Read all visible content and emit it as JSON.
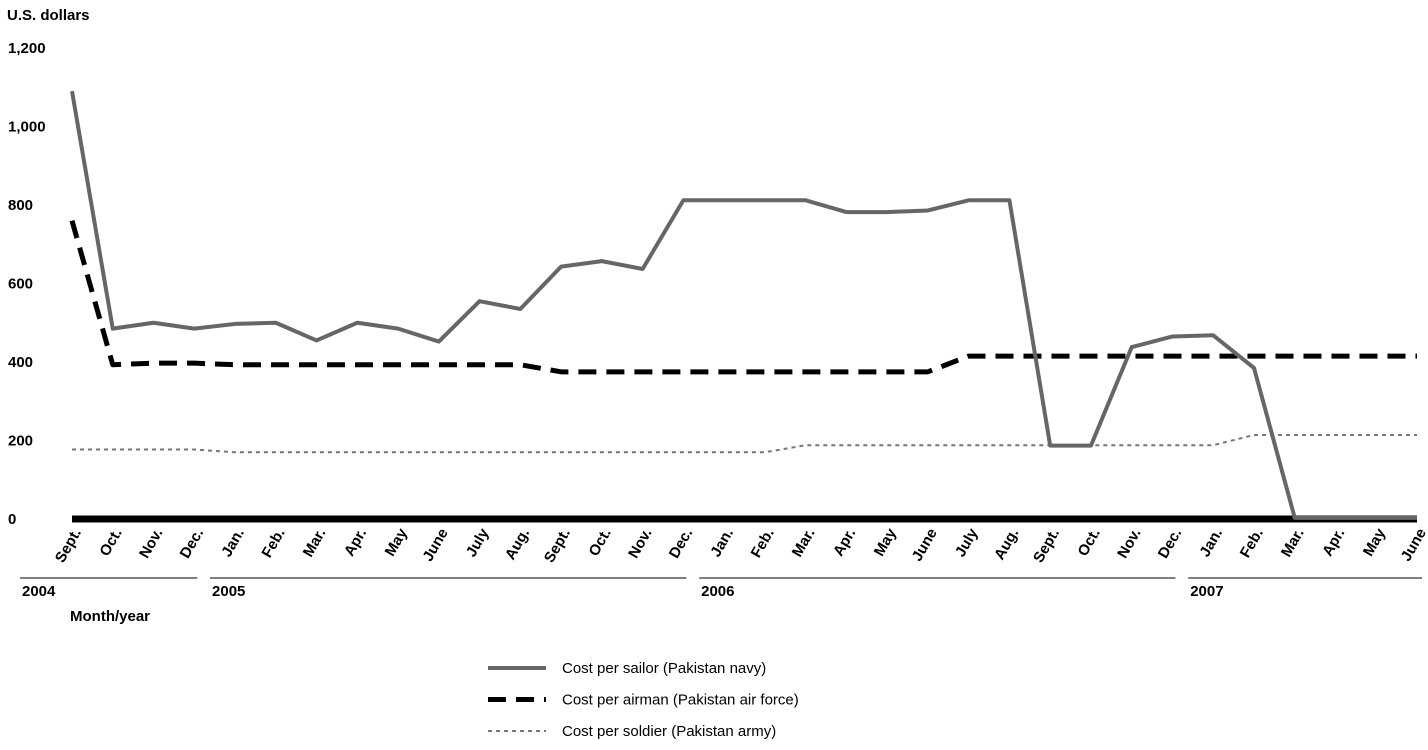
{
  "chart_data": {
    "type": "line",
    "y_label": "U.S. dollars",
    "x_label": "Month/year",
    "categories": [
      "Sept.",
      "Oct.",
      "Nov.",
      "Dec.",
      "Jan.",
      "Feb.",
      "Mar.",
      "Apr.",
      "May",
      "June",
      "July",
      "Aug.",
      "Sept.",
      "Oct.",
      "Nov.",
      "Dec.",
      "Jan.",
      "Feb.",
      "Mar.",
      "Apr.",
      "May",
      "June",
      "July",
      "Aug.",
      "Sept.",
      "Oct.",
      "Nov.",
      "Dec.",
      "Jan.",
      "Feb.",
      "Mar.",
      "Apr.",
      "May",
      "June"
    ],
    "years": [
      "2004",
      "2005",
      "2006",
      "2007"
    ],
    "series": [
      {
        "name": "Cost per sailor (Pakistan navy)",
        "color": "#666666",
        "style": "solid",
        "values": [
          1090,
          485,
          500,
          485,
          497,
          500,
          455,
          500,
          485,
          452,
          555,
          535,
          643,
          657,
          637,
          812,
          812,
          812,
          812,
          782,
          782,
          786,
          812,
          812,
          187,
          187,
          438,
          465,
          468,
          385,
          3,
          3,
          3,
          3
        ]
      },
      {
        "name": "Cost per airman (Pakistan air force)",
        "color": "#000000",
        "style": "dashed",
        "values": [
          760,
          393,
          397,
          397,
          393,
          393,
          393,
          393,
          393,
          393,
          393,
          393,
          375,
          375,
          375,
          375,
          375,
          375,
          375,
          375,
          375,
          375,
          415,
          415,
          415,
          415,
          415,
          415,
          415,
          415,
          415,
          415,
          415,
          415
        ]
      },
      {
        "name": "Cost per soldier (Pakistan army)",
        "color": "#777777",
        "style": "dotted",
        "values": [
          177,
          177,
          177,
          177,
          170,
          170,
          170,
          170,
          170,
          170,
          170,
          170,
          170,
          170,
          170,
          170,
          170,
          170,
          188,
          188,
          188,
          188,
          188,
          188,
          188,
          188,
          188,
          188,
          188,
          214,
          214,
          214,
          214,
          214
        ]
      }
    ],
    "ylim": [
      0,
      1200
    ],
    "yticks": [
      0,
      200,
      400,
      600,
      800,
      {
        "value": 1000,
        "label": "1,000"
      },
      {
        "value": 1200,
        "label": "1,200"
      }
    ],
    "grid": false,
    "legend": "bottom"
  }
}
